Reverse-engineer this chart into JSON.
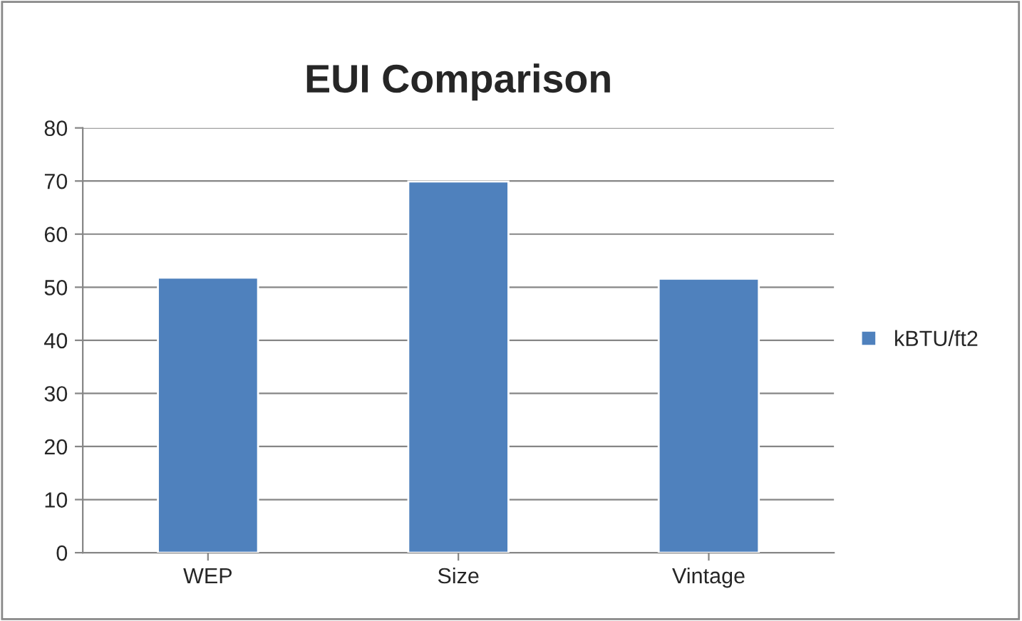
{
  "chart_data": {
    "type": "bar",
    "title": "EUI Comparison",
    "categories": [
      "WEP",
      "Size",
      "Vintage"
    ],
    "series": [
      {
        "name": "kBTU/ft2",
        "color": "#4f81bd",
        "values": [
          51.8,
          69.9,
          51.6
        ]
      }
    ],
    "ylim": [
      0,
      80
    ],
    "yticks": [
      0,
      10,
      20,
      30,
      40,
      50,
      60,
      70,
      80
    ],
    "grid": "y",
    "legend": "right"
  }
}
